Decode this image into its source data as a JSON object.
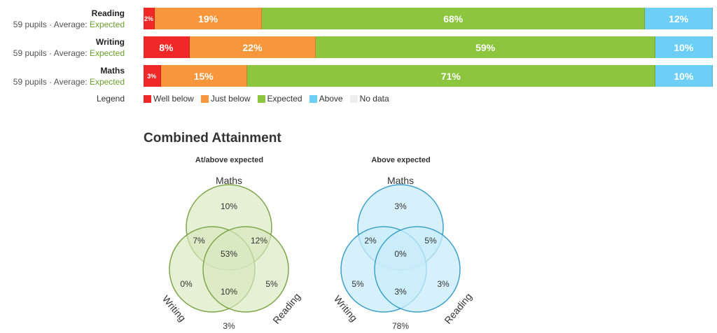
{
  "rows": [
    {
      "subject": "Reading",
      "meta": "59 pupils · Average: ",
      "average": "Expected",
      "segments": [
        {
          "category": "Well below",
          "value": 2,
          "label": "2%"
        },
        {
          "category": "Just below",
          "value": 19,
          "label": "19%"
        },
        {
          "category": "Expected",
          "value": 68,
          "label": "68%"
        },
        {
          "category": "Above",
          "value": 12,
          "label": "12%"
        }
      ]
    },
    {
      "subject": "Writing",
      "meta": "59 pupils · Average: ",
      "average": "Expected",
      "segments": [
        {
          "category": "Well below",
          "value": 8,
          "label": "8%"
        },
        {
          "category": "Just below",
          "value": 22,
          "label": "22%"
        },
        {
          "category": "Expected",
          "value": 59,
          "label": "59%"
        },
        {
          "category": "Above",
          "value": 10,
          "label": "10%"
        }
      ]
    },
    {
      "subject": "Maths",
      "meta": "59 pupils · Average: ",
      "average": "Expected",
      "segments": [
        {
          "category": "Well below",
          "value": 3,
          "label": "3%"
        },
        {
          "category": "Just below",
          "value": 15,
          "label": "15%"
        },
        {
          "category": "Expected",
          "value": 71,
          "label": "71%"
        },
        {
          "category": "Above",
          "value": 10,
          "label": "10%"
        }
      ]
    }
  ],
  "legend": {
    "title": "Legend",
    "items": [
      {
        "label": "Well below",
        "color": "#f02828"
      },
      {
        "label": "Just below",
        "color": "#f7963a"
      },
      {
        "label": "Expected",
        "color": "#8cc63f"
      },
      {
        "label": "Above",
        "color": "#6dcff6"
      },
      {
        "label": "No data",
        "color": "#eeeeee"
      }
    ]
  },
  "section_title": "Combined Attainment",
  "chart_data": [
    {
      "type": "bar",
      "stacked": true,
      "categories": [
        "Reading",
        "Writing",
        "Maths"
      ],
      "series": [
        {
          "name": "Well below",
          "values": [
            2,
            8,
            3
          ]
        },
        {
          "name": "Just below",
          "values": [
            19,
            22,
            15
          ]
        },
        {
          "name": "Expected",
          "values": [
            68,
            59,
            71
          ]
        },
        {
          "name": "Above",
          "values": [
            12,
            10,
            10
          ]
        }
      ],
      "legend_placement": "bottom"
    },
    {
      "type": "venn",
      "title": "At/above expected",
      "sets": [
        "Maths",
        "Writing",
        "Reading"
      ],
      "regions": {
        "Maths only": "10%",
        "Writing only": "0%",
        "Reading only": "5%",
        "Maths and Writing": "7%",
        "Maths and Reading": "12%",
        "Writing and Reading": "10%",
        "All three": "53%",
        "None": "3%"
      },
      "fill": "#d7e8be",
      "stroke": "#7fa64a"
    },
    {
      "type": "venn",
      "title": "Above expected",
      "sets": [
        "Maths",
        "Writing",
        "Reading"
      ],
      "regions": {
        "Maths only": "3%",
        "Writing only": "5%",
        "Reading only": "3%",
        "Maths and Writing": "2%",
        "Maths and Reading": "5%",
        "Writing and Reading": "3%",
        "All three": "0%",
        "None": "78%"
      },
      "fill": "#c9ecfb",
      "stroke": "#3ea0cc"
    }
  ]
}
